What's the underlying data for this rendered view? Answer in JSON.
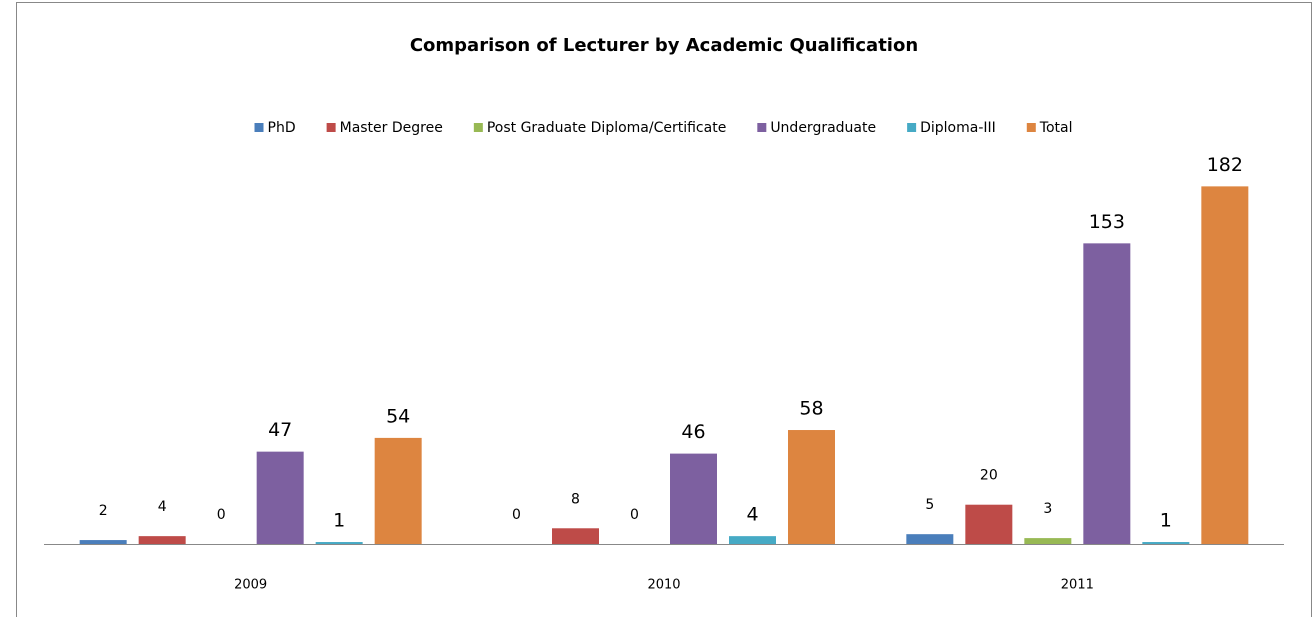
{
  "chart_data": {
    "type": "bar",
    "title": "Comparison of Lecturer by Academic Qualification",
    "categories": [
      "2009",
      "2010",
      "2011"
    ],
    "series": [
      {
        "name": "PhD",
        "color": "#4a7ebb",
        "values": [
          2,
          0,
          5
        ]
      },
      {
        "name": "Master Degree",
        "color": "#be4b48",
        "values": [
          4,
          8,
          20
        ]
      },
      {
        "name": "Post Graduate Diploma/Certificate",
        "color": "#98b954",
        "values": [
          0,
          0,
          3
        ]
      },
      {
        "name": "Undergraduate",
        "color": "#7d60a0",
        "values": [
          47,
          46,
          153
        ]
      },
      {
        "name": "Diploma-III",
        "color": "#46aac5",
        "values": [
          1,
          4,
          1
        ]
      },
      {
        "name": "Total",
        "color": "#dd8540",
        "values": [
          54,
          58,
          182
        ]
      }
    ],
    "ylim": [
      0,
      200
    ],
    "legend": "top"
  }
}
